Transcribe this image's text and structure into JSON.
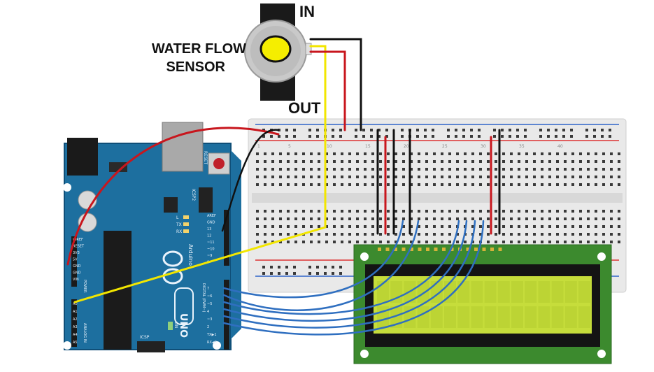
{
  "sensor": {
    "label_line1": "WATER FLOW",
    "label_line2": "SENSOR",
    "in_label": "IN",
    "out_label": "OUT"
  },
  "arduino": {
    "brand": "Arduino",
    "model": "UNO",
    "reset_label": "RESET",
    "icsp2_label": "ICSP2",
    "icsp_label": "ICSP",
    "on_label": "ON",
    "led_labels": [
      "L",
      "TX",
      "RX"
    ],
    "power_header_label": "POWER",
    "analog_header_label": "ANALOG IN",
    "digital_header_label": "DIGITAL (PWM~)",
    "power_pins": [
      "IOREF",
      "RESET",
      "3V3",
      "5V",
      "GND",
      "GND",
      "VIN"
    ],
    "analog_pins": [
      "A0",
      "A1",
      "A2",
      "A3",
      "A4",
      "A5"
    ],
    "digital_pins_top": [
      "AREF",
      "GND",
      "13",
      "12",
      "~11",
      "~10",
      "~9",
      "8"
    ],
    "digital_pins_bottom": [
      "7",
      "~6",
      "~5",
      "4",
      "~3",
      "2",
      "TX▶1",
      "RX◀0"
    ]
  },
  "breadboard": {
    "column_numbers": [
      "1",
      "5",
      "10",
      "15",
      "20",
      "25",
      "30",
      "35",
      "40"
    ]
  },
  "colors": {
    "wire_red": "#c8161d",
    "wire_black": "#111111",
    "wire_yellow": "#f2e600",
    "wire_blue": "#2f6fc0",
    "board_blue": "#1d6f9f",
    "lcd_green": "#3c8a2e",
    "lcd_screen": "#c6dd3b"
  }
}
